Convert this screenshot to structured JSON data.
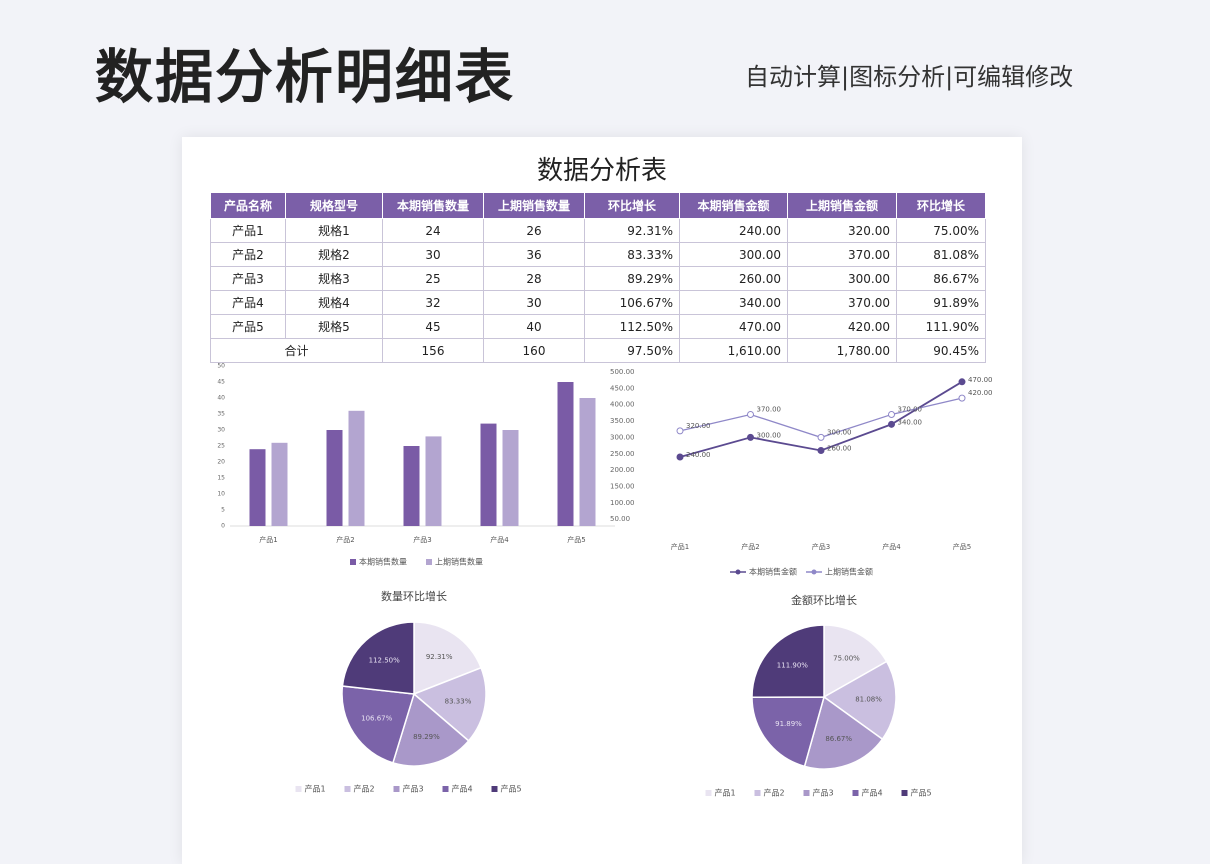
{
  "header": {
    "title": "数据分析明细表",
    "subtitle": "自动计算|图标分析|可编辑修改"
  },
  "sheet": {
    "title": "数据分析表",
    "table": {
      "columns": [
        "产品名称",
        "规格型号",
        "本期销售数量",
        "上期销售数量",
        "环比增长",
        "本期销售金额",
        "上期销售金额",
        "环比增长"
      ],
      "rows": [
        [
          "产品1",
          "规格1",
          "24",
          "26",
          "92.31%",
          "240.00",
          "320.00",
          "75.00%"
        ],
        [
          "产品2",
          "规格2",
          "30",
          "36",
          "83.33%",
          "300.00",
          "370.00",
          "81.08%"
        ],
        [
          "产品3",
          "规格3",
          "25",
          "28",
          "89.29%",
          "260.00",
          "300.00",
          "86.67%"
        ],
        [
          "产品4",
          "规格4",
          "32",
          "30",
          "106.67%",
          "340.00",
          "370.00",
          "91.89%"
        ],
        [
          "产品5",
          "规格5",
          "45",
          "40",
          "112.50%",
          "470.00",
          "420.00",
          "111.90%"
        ]
      ],
      "total": {
        "label": "合计",
        "cells": [
          "156",
          "160",
          "97.50%",
          "1,610.00",
          "1,780.00",
          "90.45%"
        ]
      }
    }
  },
  "chart_data": [
    {
      "type": "bar",
      "categories": [
        "产品1",
        "产品2",
        "产品3",
        "产品4",
        "产品5"
      ],
      "series": [
        {
          "name": "本期销售数量",
          "color": "#7a5ba6",
          "values": [
            24,
            30,
            25,
            32,
            45
          ]
        },
        {
          "name": "上期销售数量",
          "color": "#b3a5d0",
          "values": [
            26,
            36,
            28,
            30,
            40
          ]
        }
      ],
      "ylim": [
        0,
        50
      ],
      "yticks": [
        0,
        5,
        10,
        15,
        20,
        25,
        30,
        35,
        40,
        45,
        50
      ],
      "grid": false,
      "legend": "bottom"
    },
    {
      "type": "line",
      "categories": [
        "产品1",
        "产品2",
        "产品3",
        "产品4",
        "产品5"
      ],
      "series": [
        {
          "name": "本期销售金额",
          "color": "#5b4a90",
          "values": [
            240,
            300,
            260,
            340,
            470
          ],
          "value_labels": [
            "240.00",
            "300.00",
            "260.00",
            "340.00",
            "470.00"
          ]
        },
        {
          "name": "上期销售金额",
          "color": "#8f88c8",
          "values": [
            320,
            370,
            300,
            370,
            420
          ],
          "value_labels": [
            "320.00",
            "370.00",
            "300.00",
            "370.00",
            "420.00"
          ]
        }
      ],
      "ylim": [
        0,
        500
      ],
      "yticks": [
        {
          "value": 50,
          "label": "50.00"
        },
        {
          "value": 100,
          "label": "100.00"
        },
        {
          "value": 150,
          "label": "150.00"
        },
        {
          "value": 200,
          "label": "200.00"
        },
        {
          "value": 250,
          "label": "250.00"
        },
        {
          "value": 300,
          "label": "300.00"
        },
        {
          "value": 350,
          "label": "350.00"
        },
        {
          "value": 400,
          "label": "400.00"
        },
        {
          "value": 450,
          "label": "450.00"
        },
        {
          "value": 500,
          "label": "500.00"
        }
      ],
      "grid": false,
      "legend": "bottom"
    },
    {
      "type": "pie",
      "title": "数量环比增长",
      "categories": [
        "产品1",
        "产品2",
        "产品3",
        "产品4",
        "产品5"
      ],
      "values": [
        92.31,
        83.33,
        89.29,
        106.67,
        112.5
      ],
      "value_labels": [
        "92.31%",
        "83.33%",
        "89.29%",
        "106.67%",
        "112.50%"
      ],
      "colors": [
        "#e9e4f1",
        "#cabfe0",
        "#a998c9",
        "#7b63a9",
        "#4f3b79"
      ],
      "legend": "bottom"
    },
    {
      "type": "pie",
      "title": "金额环比增长",
      "categories": [
        "产品1",
        "产品2",
        "产品3",
        "产品4",
        "产品5"
      ],
      "values": [
        75,
        81.08,
        86.67,
        91.89,
        111.9
      ],
      "value_labels": [
        "75.00%",
        "81.08%",
        "86.67%",
        "91.89%",
        "111.90%"
      ],
      "colors": [
        "#e9e4f1",
        "#cabfe0",
        "#a998c9",
        "#7b63a9",
        "#4f3b79"
      ],
      "legend": "bottom"
    }
  ]
}
